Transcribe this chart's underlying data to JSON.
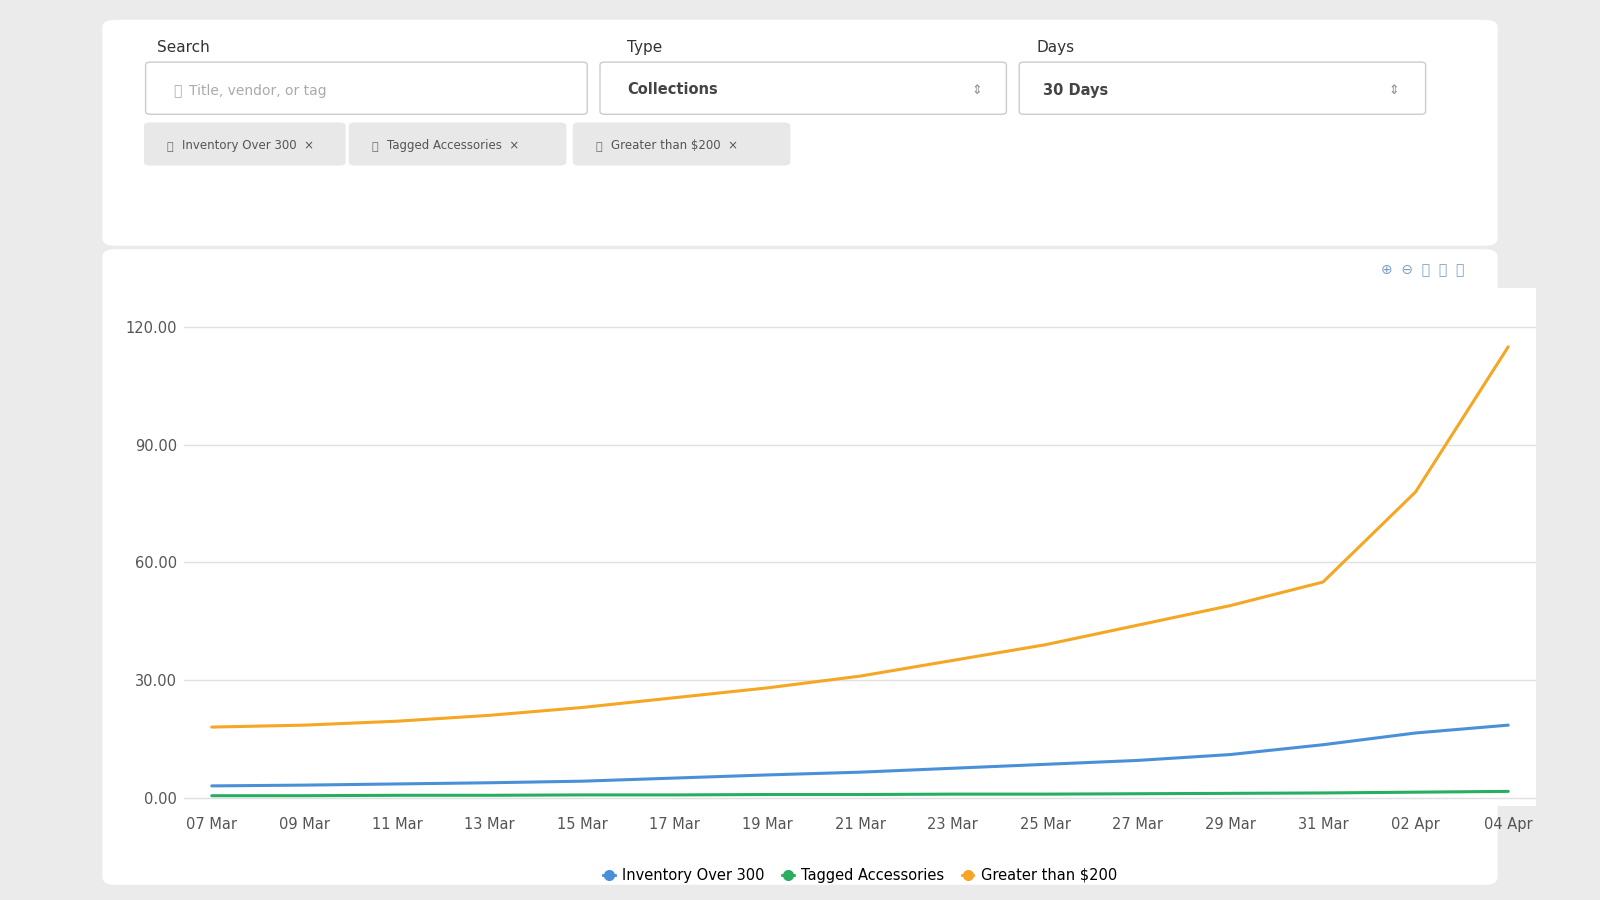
{
  "x_labels": [
    "07 Mar",
    "09 Mar",
    "11 Mar",
    "13 Mar",
    "15 Mar",
    "17 Mar",
    "19 Mar",
    "21 Mar",
    "23 Mar",
    "25 Mar",
    "27 Mar",
    "29 Mar",
    "31 Mar",
    "02 Apr",
    "04 Apr"
  ],
  "inventory_over_300": [
    3.0,
    3.2,
    3.5,
    3.8,
    4.2,
    5.0,
    5.8,
    6.5,
    7.5,
    8.5,
    9.5,
    11.0,
    13.5,
    16.5,
    18.5
  ],
  "tagged_accessories": [
    0.5,
    0.5,
    0.6,
    0.6,
    0.7,
    0.7,
    0.8,
    0.8,
    0.9,
    0.9,
    1.0,
    1.1,
    1.2,
    1.4,
    1.6
  ],
  "greater_than_200": [
    18.0,
    18.5,
    19.5,
    21.0,
    23.0,
    25.5,
    28.0,
    31.0,
    35.0,
    39.0,
    44.0,
    49.0,
    55.0,
    78.0,
    115.0
  ],
  "colors": {
    "inventory_over_300": "#4a90d9",
    "tagged_accessories": "#27ae60",
    "greater_than_200": "#f5a623"
  },
  "yticks": [
    0.0,
    30.0,
    60.0,
    90.0,
    120.0
  ],
  "ylim": [
    -2,
    130
  ],
  "background_color": "#ebebeb",
  "panel_bg": "#ffffff",
  "chart_bg": "#ffffff",
  "grid_color": "#e0e0e0",
  "legend_labels": [
    "Inventory Over 300",
    "Tagged Accessories",
    "Greater than $200"
  ],
  "legend_colors": [
    "#4a90d9",
    "#27ae60",
    "#f5a623"
  ],
  "tick_color": "#555555",
  "tick_fontsize": 10.5,
  "legend_fontsize": 10.5,
  "line_width": 2.2,
  "search_label": "Search",
  "type_label": "Type",
  "days_label": "Days",
  "search_placeholder": "Title, vendor, or tag",
  "type_value": "Collections",
  "days_value": "30 Days",
  "filter_chips": [
    "Inventory Over 300",
    "Tagged Accessories",
    "Greater than $200"
  ],
  "ui_text_color": "#444444",
  "label_color": "#333333",
  "chip_bg": "#e8e8e8",
  "chip_text_color": "#555555",
  "input_border": "#cccccc",
  "placeholder_color": "#aaaaaa"
}
